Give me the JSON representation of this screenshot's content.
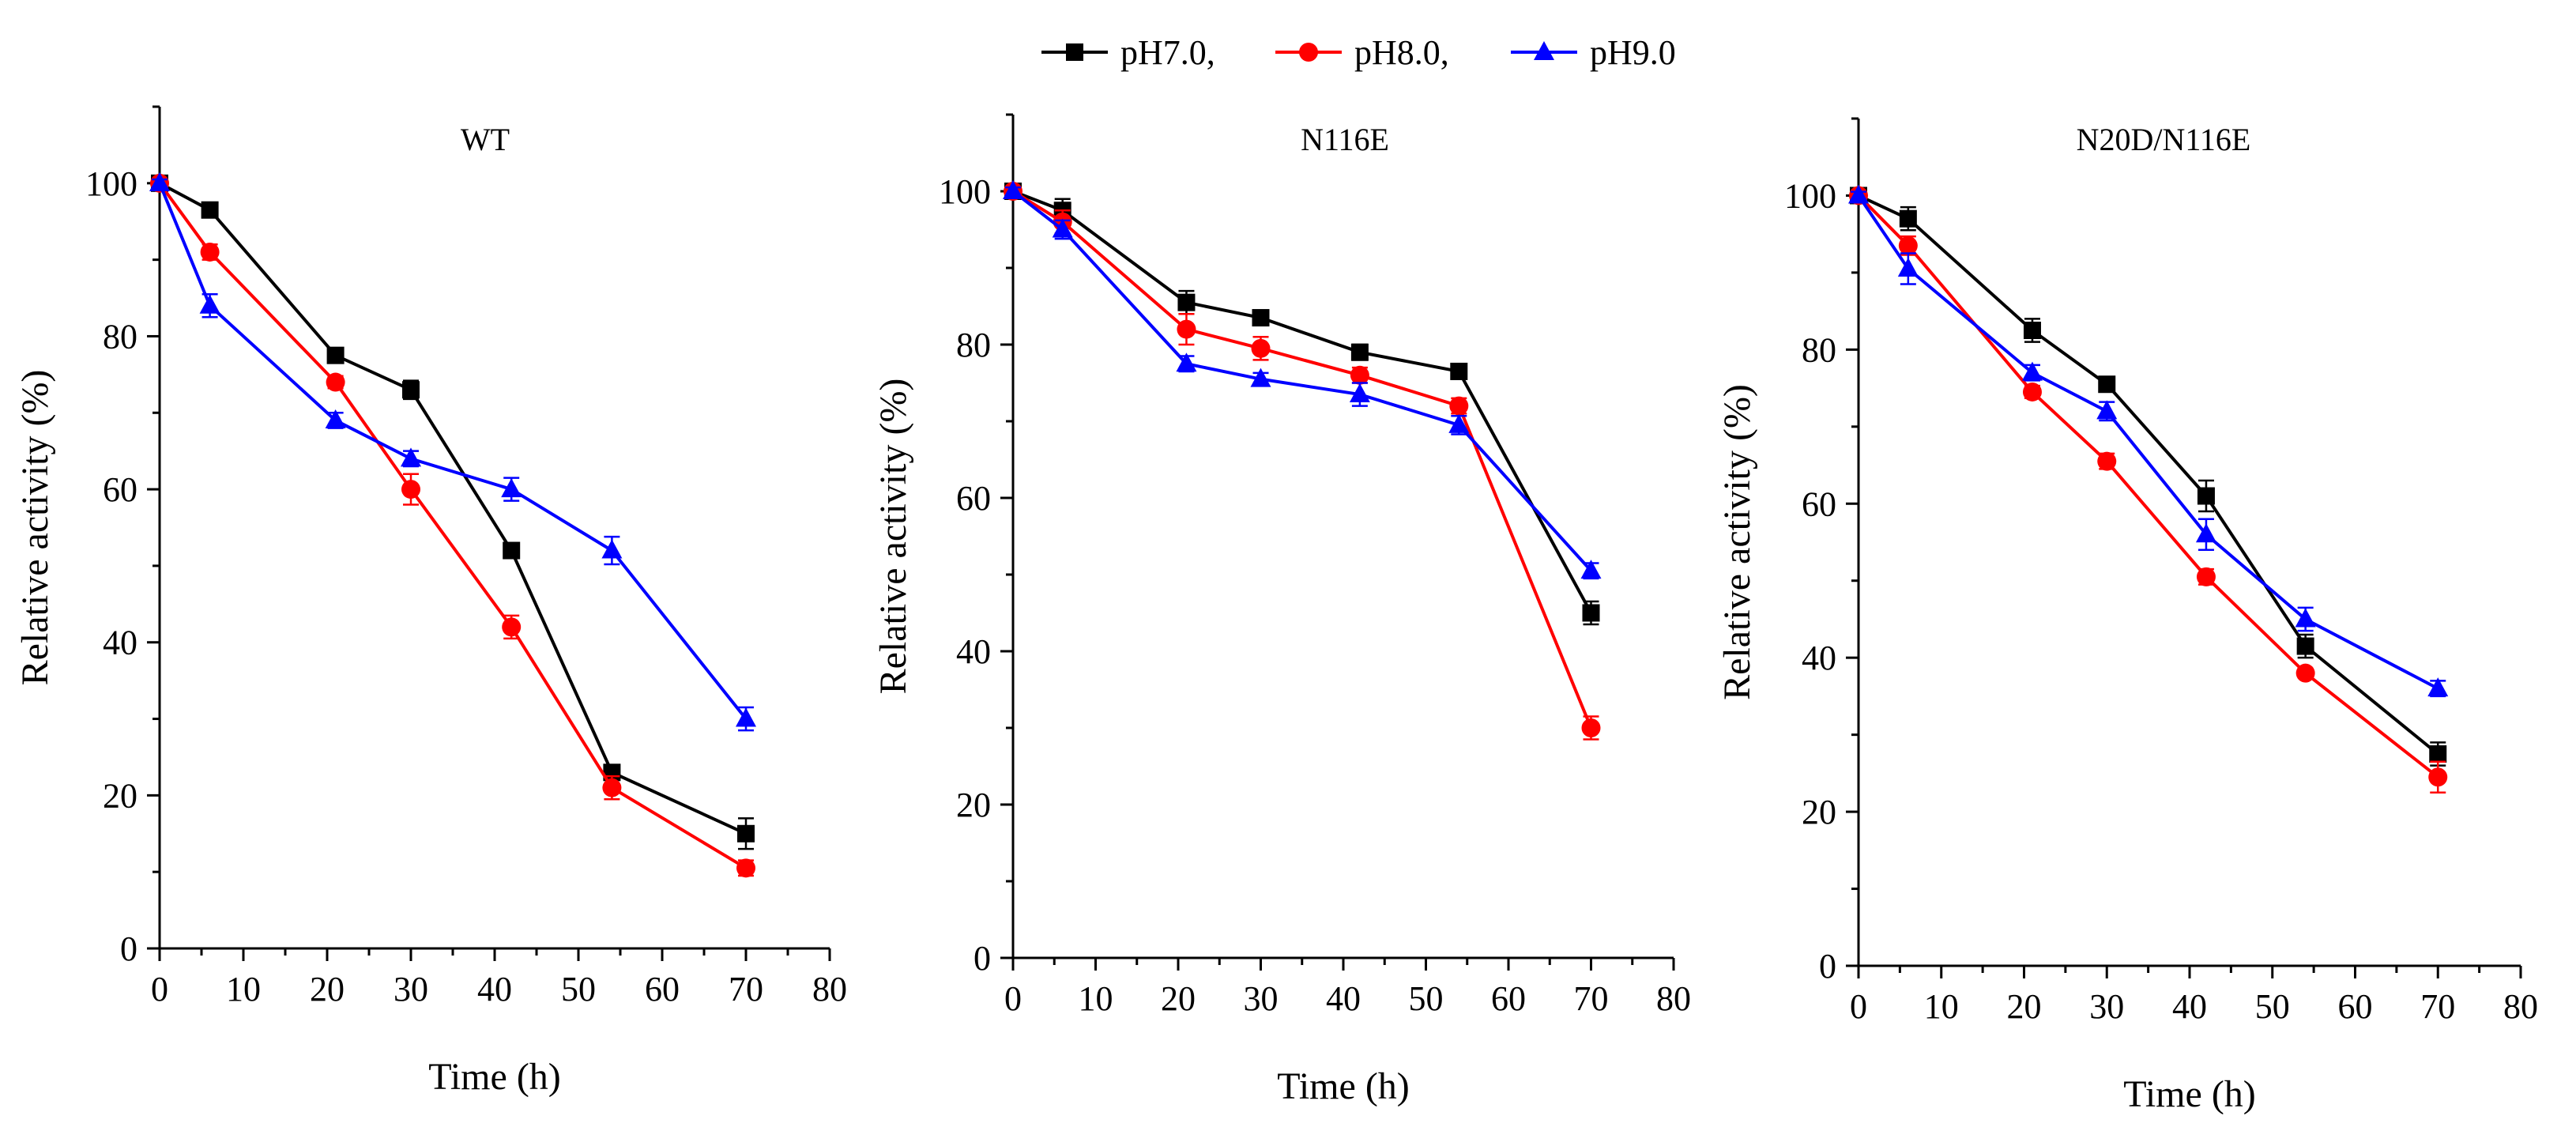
{
  "chart_data": {
    "type": "line",
    "legend": {
      "placement": "top-center",
      "entries": [
        {
          "label": "pH7.0,",
          "color": "#000000",
          "marker": "square"
        },
        {
          "label": "pH8.0,",
          "color": "#ff0000",
          "marker": "circle"
        },
        {
          "label": "pH9.0",
          "color": "#0000ff",
          "marker": "triangle"
        }
      ]
    },
    "panels": [
      {
        "title": "WT",
        "xlabel": "Time (h)",
        "ylabel": "Relative activity (%)",
        "xlim": [
          0,
          80
        ],
        "ylim": [
          0,
          110
        ],
        "xticks": [
          0,
          10,
          20,
          30,
          40,
          50,
          60,
          70,
          80
        ],
        "yticks": [
          0,
          20,
          40,
          60,
          80,
          100
        ],
        "x": [
          0,
          6,
          21,
          30,
          42,
          54,
          70
        ],
        "series": [
          {
            "name": "pH7.0",
            "color": "#000000",
            "marker": "square",
            "values": [
              100,
              96.5,
              77.5,
              73,
              52,
              23,
              15
            ],
            "errors": [
              0.5,
              0.8,
              0.5,
              1.2,
              0.5,
              0.8,
              2
            ]
          },
          {
            "name": "pH8.0",
            "color": "#ff0000",
            "marker": "circle",
            "values": [
              100,
              91,
              74,
              60,
              42,
              21,
              10.5
            ],
            "errors": [
              0.5,
              1,
              0.8,
              2,
              1.5,
              1.5,
              1
            ]
          },
          {
            "name": "pH9.0",
            "color": "#0000ff",
            "marker": "triangle",
            "values": [
              100,
              84,
              69,
              64,
              60,
              52,
              30
            ],
            "errors": [
              0.5,
              1.5,
              1,
              1,
              1.5,
              1.8,
              1.5
            ]
          }
        ]
      },
      {
        "title": "N116E",
        "xlabel": "Time (h)",
        "ylabel": "Relative activity (%)",
        "xlim": [
          0,
          80
        ],
        "ylim": [
          0,
          110
        ],
        "xticks": [
          0,
          10,
          20,
          30,
          40,
          50,
          60,
          70,
          80
        ],
        "yticks": [
          0,
          20,
          40,
          60,
          80,
          100
        ],
        "x": [
          0,
          6,
          21,
          30,
          42,
          54,
          70
        ],
        "series": [
          {
            "name": "pH7.0",
            "color": "#000000",
            "marker": "square",
            "values": [
              100,
              97.5,
              85.5,
              83.5,
              79,
              76.5,
              45
            ],
            "errors": [
              0.5,
              1.5,
              1.5,
              0.8,
              1,
              0.8,
              1.5
            ]
          },
          {
            "name": "pH8.0",
            "color": "#ff0000",
            "marker": "circle",
            "values": [
              100,
              96,
              82,
              79.5,
              76,
              72,
              30
            ],
            "errors": [
              0.5,
              1.5,
              2,
              1.5,
              1,
              1,
              1.5
            ]
          },
          {
            "name": "pH9.0",
            "color": "#0000ff",
            "marker": "triangle",
            "values": [
              100,
              95,
              77.5,
              75.5,
              73.5,
              69.5,
              50.5
            ],
            "errors": [
              0.5,
              1.2,
              1,
              0.8,
              1.5,
              1.2,
              1
            ]
          }
        ]
      },
      {
        "title": "N20D/N116E",
        "xlabel": "Time (h)",
        "ylabel": "Relative activity (%)",
        "xlim": [
          0,
          80
        ],
        "ylim": [
          0,
          110
        ],
        "xticks": [
          0,
          10,
          20,
          30,
          40,
          50,
          60,
          70,
          80
        ],
        "yticks": [
          0,
          20,
          40,
          60,
          80,
          100
        ],
        "x": [
          0,
          6,
          21,
          30,
          42,
          54,
          70
        ],
        "series": [
          {
            "name": "pH7.0",
            "color": "#000000",
            "marker": "square",
            "values": [
              100,
              97,
              82.5,
              75.5,
              61,
              41.5,
              27.5
            ],
            "errors": [
              0.5,
              1.5,
              1.5,
              0.8,
              2,
              1.5,
              1.5
            ]
          },
          {
            "name": "pH8.0",
            "color": "#ff0000",
            "marker": "circle",
            "values": [
              100,
              93.5,
              74.5,
              65.5,
              50.5,
              38,
              24.5
            ],
            "errors": [
              0.5,
              1.2,
              0.8,
              1,
              1,
              0.5,
              2
            ]
          },
          {
            "name": "pH9.0",
            "color": "#0000ff",
            "marker": "triangle",
            "values": [
              100,
              90.5,
              77,
              72,
              56,
              45,
              36
            ],
            "errors": [
              0.5,
              2,
              1,
              1.2,
              2,
              1.5,
              1
            ]
          }
        ]
      }
    ]
  }
}
